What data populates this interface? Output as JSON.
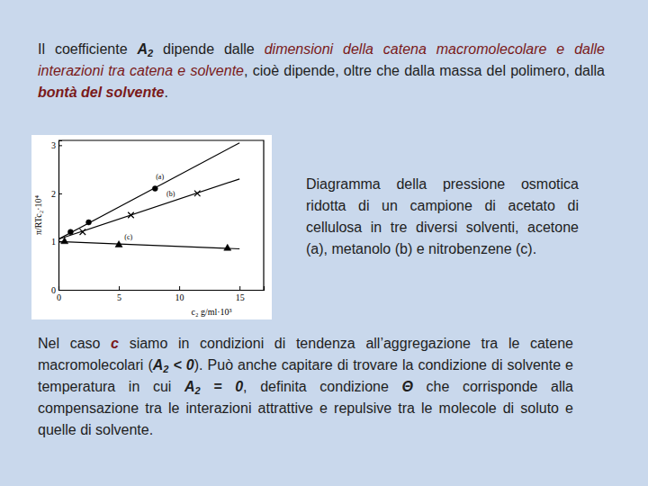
{
  "slide": {
    "intro": [
      {
        "text": "Il coefficiente ",
        "style": "plain"
      },
      {
        "text": "A",
        "style": "bold-italic"
      },
      {
        "text": "2",
        "style": "sub"
      },
      {
        "text": " dipende dalle ",
        "style": "plain"
      },
      {
        "text": "dimensioni della catena macromolecolare e dalle interazioni tra catena e solvente",
        "style": "accent"
      },
      {
        "text": ", cioè dipende, oltre che dalla massa del polimero, dalla ",
        "style": "plain"
      },
      {
        "text": "bontà del solvente",
        "style": "accent-bold"
      },
      {
        "text": ".",
        "style": "plain"
      }
    ],
    "caption": "Diagramma della pressione osmotica ridotta di un campione di acetato di cellulosa in tre diversi solventi, acetone (a), metanolo (b) e nitrobenzene (c).",
    "conclusion": [
      {
        "text": "Nel caso ",
        "style": "plain"
      },
      {
        "text": "c",
        "style": "accent-bold"
      },
      {
        "text": " siamo in condizioni di tendenza all’aggregazione tra le catene macromolecolari (",
        "style": "plain"
      },
      {
        "text": "A",
        "style": "bold-italic"
      },
      {
        "text": "2",
        "style": "sub"
      },
      {
        "text": " < 0",
        "style": "bold-italic"
      },
      {
        "text": "). Può anche capitare di trovare la condizione di solvente e temperatura in cui ",
        "style": "plain"
      },
      {
        "text": "A",
        "style": "bold-italic"
      },
      {
        "text": "2",
        "style": "sub"
      },
      {
        "text": " = 0",
        "style": "bold-italic"
      },
      {
        "text": ", definita condizione ",
        "style": "plain"
      },
      {
        "text": "Θ",
        "style": "bold-italic"
      },
      {
        "text": " che corrisponde alla compensazione tra le interazioni attrattive e repulsive tra le molecole di soluto e quelle di solvente.",
        "style": "plain"
      }
    ]
  },
  "chart_data": {
    "type": "scatter",
    "x_label": "c₂  g/ml·10³",
    "y_label": "π/RTc₂·10⁴",
    "xlim": [
      0,
      17
    ],
    "ylim": [
      0,
      3.1
    ],
    "xticks": [
      0,
      5,
      10,
      15
    ],
    "yticks": [
      0,
      1,
      2,
      3
    ],
    "series": [
      {
        "type": "line",
        "x": [
          0,
          15
        ],
        "values": [
          1.05,
          3.05
        ],
        "color": "#000000",
        "line_style": "solid"
      },
      {
        "type": "line",
        "x": [
          0,
          15
        ],
        "values": [
          1.05,
          2.3
        ],
        "color": "#000000",
        "line_style": "solid"
      },
      {
        "type": "line",
        "x": [
          0,
          15
        ],
        "values": [
          1.0,
          0.85
        ],
        "color": "#000000",
        "line_style": "solid"
      },
      {
        "type": "scatter",
        "x": [
          1,
          2.5,
          8
        ],
        "values": [
          1.2,
          1.4,
          2.1
        ],
        "color": "#000000",
        "marker": "circle"
      },
      {
        "type": "scatter",
        "x": [
          2,
          6,
          11.5
        ],
        "values": [
          1.2,
          1.55,
          2.0
        ],
        "color": "#000000",
        "marker": "cross"
      },
      {
        "type": "scatter",
        "x": [
          0.5,
          5,
          14
        ],
        "values": [
          1.0,
          0.93,
          0.86
        ],
        "color": "#000000",
        "marker": "triangle"
      }
    ],
    "annotations": [
      {
        "text": "(a)",
        "x": 8.4,
        "y": 2.3
      },
      {
        "text": "(b)",
        "x": 9.3,
        "y": 1.95
      },
      {
        "text": "(c)",
        "x": 5.8,
        "y": 1.05
      }
    ]
  }
}
